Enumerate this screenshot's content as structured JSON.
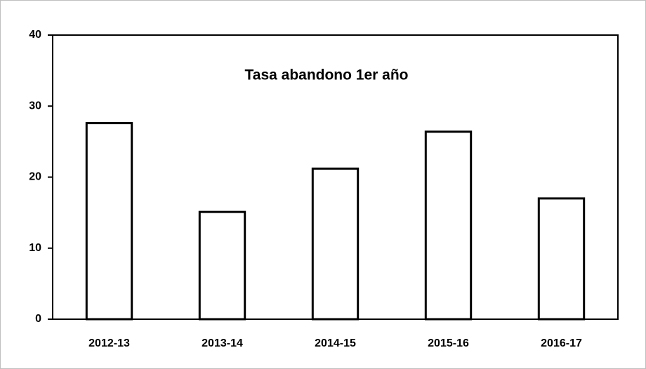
{
  "chart_data": {
    "type": "bar",
    "title": "Tasa abandono 1er año",
    "categories": [
      "2012-13",
      "2013-14",
      "2014-15",
      "2015-16",
      "2016-17"
    ],
    "values": [
      27.6,
      15.1,
      21.2,
      26.4,
      17.0
    ],
    "color": "#ffffff",
    "edge_color": "#000000",
    "ylim": [
      0,
      40
    ],
    "yticks": [
      0,
      10,
      20,
      30,
      40
    ],
    "grid": false
  }
}
